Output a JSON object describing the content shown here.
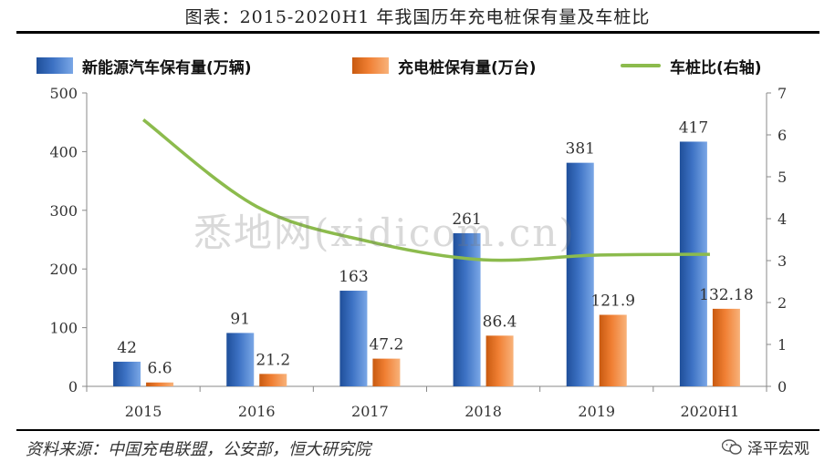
{
  "title": "图表：2015-2020H1 年我国历年充电桩保有量及车桩比",
  "watermark": "悉地网(xidicom.cn)",
  "source": "资料来源：中国充电联盟，公安部，恒大研究院",
  "brand": "泽平宏观",
  "colors": {
    "ev": "#3d72c4",
    "charger": "#f07f33",
    "ratio": "#8cbb4d"
  },
  "chart_data": {
    "type": "bar",
    "categories": [
      "2015",
      "2016",
      "2017",
      "2018",
      "2019",
      "2020H1"
    ],
    "series": [
      {
        "name": "新能源汽车保有量(万辆)",
        "type": "bar",
        "axis": "left",
        "values": [
          42,
          91,
          163,
          261,
          381,
          417
        ],
        "labels": [
          "42",
          "91",
          "163",
          "261",
          "381",
          "417"
        ]
      },
      {
        "name": "充电桩保有量(万台)",
        "type": "bar",
        "axis": "left",
        "values": [
          6.6,
          21.2,
          47.2,
          86.4,
          121.9,
          132.18
        ],
        "labels": [
          "6.6",
          "21.2",
          "47.2",
          "86.4",
          "121.9",
          "132.18"
        ]
      },
      {
        "name": "车桩比(右轴)",
        "type": "line",
        "axis": "right",
        "values": [
          6.36,
          4.29,
          3.45,
          3.02,
          3.13,
          3.15
        ]
      }
    ],
    "ylim_left": [
      0,
      500
    ],
    "yticks_left": [
      "0",
      "100",
      "200",
      "300",
      "400",
      "500"
    ],
    "ylim_right": [
      0,
      7
    ],
    "yticks_right": [
      "0",
      "1",
      "2",
      "3",
      "4",
      "5",
      "6",
      "7"
    ],
    "legend_position": "top"
  }
}
